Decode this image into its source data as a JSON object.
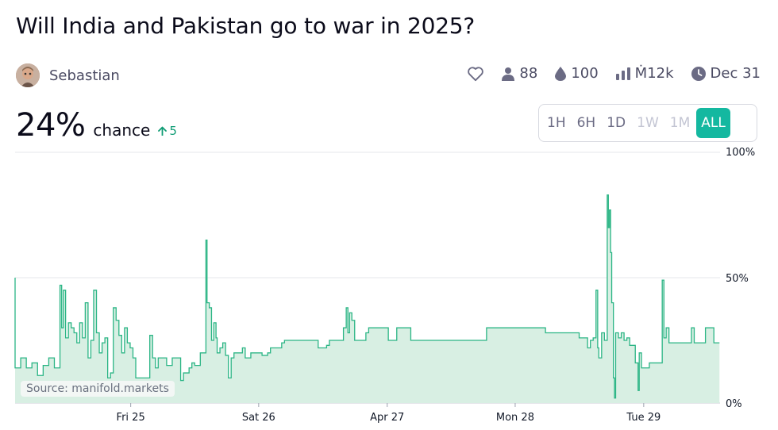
{
  "title": "Will India and Pakistan go to war in 2025?",
  "author": {
    "name": "Sebastian"
  },
  "stats": {
    "like_icon": "heart-icon",
    "traders": "88",
    "liquidity": "100",
    "volume": "Ṁ12k",
    "close_date": "Dec 31"
  },
  "probability": {
    "value": "24%",
    "label": "chance",
    "change": "5",
    "change_direction": "up"
  },
  "time_range": {
    "options": [
      {
        "label": "1H",
        "state": "enabled"
      },
      {
        "label": "6H",
        "state": "enabled"
      },
      {
        "label": "1D",
        "state": "enabled"
      },
      {
        "label": "1W",
        "state": "disabled"
      },
      {
        "label": "1M",
        "state": "disabled"
      },
      {
        "label": "ALL",
        "state": "active"
      }
    ]
  },
  "source_label": "Source: manifold.markets",
  "colors": {
    "line": "#2bb585",
    "fill": "#d8efe3",
    "accent": "#14b8a0",
    "grid": "#e5e7eb"
  },
  "chart_data": {
    "type": "area",
    "title": "",
    "xlabel": "",
    "ylabel": "",
    "x_unit": "hours since first plotted point",
    "x_range": [
      0,
      123
    ],
    "ylim": [
      0,
      100
    ],
    "y_ticks": [
      "0%",
      "50%",
      "100%"
    ],
    "y_tick_values": [
      0,
      50,
      100
    ],
    "x_ticks": [
      {
        "x": 20.6,
        "label": "Fri 25"
      },
      {
        "x": 43.4,
        "label": "Sat 26"
      },
      {
        "x": 66.3,
        "label": "Apr 27"
      },
      {
        "x": 89.1,
        "label": "Mon 28"
      },
      {
        "x": 112.0,
        "label": "Tue 29"
      }
    ],
    "grid": true,
    "series": [
      {
        "values": [
          [
            0,
            50
          ],
          [
            0,
            14
          ],
          [
            1,
            14
          ],
          [
            1,
            18
          ],
          [
            2,
            18
          ],
          [
            2,
            14
          ],
          [
            3,
            14
          ],
          [
            3,
            16
          ],
          [
            4,
            16
          ],
          [
            4,
            11
          ],
          [
            5,
            11
          ],
          [
            5,
            15
          ],
          [
            6,
            15
          ],
          [
            6,
            18
          ],
          [
            7,
            18
          ],
          [
            7,
            14
          ],
          [
            8,
            14
          ],
          [
            8,
            47
          ],
          [
            8.3,
            30
          ],
          [
            8.6,
            45
          ],
          [
            9,
            26
          ],
          [
            9.5,
            32
          ],
          [
            10,
            30
          ],
          [
            10.5,
            28
          ],
          [
            11,
            24
          ],
          [
            11.5,
            32
          ],
          [
            12,
            26
          ],
          [
            12.5,
            40
          ],
          [
            13,
            18
          ],
          [
            13.5,
            25
          ],
          [
            14,
            45
          ],
          [
            14.5,
            28
          ],
          [
            15,
            20
          ],
          [
            15.5,
            24
          ],
          [
            16,
            26
          ],
          [
            16.5,
            10
          ],
          [
            17,
            12
          ],
          [
            17.5,
            38
          ],
          [
            18,
            33
          ],
          [
            18.5,
            27
          ],
          [
            19,
            20
          ],
          [
            19.5,
            30
          ],
          [
            20,
            24
          ],
          [
            20.5,
            22
          ],
          [
            21,
            18
          ],
          [
            21.5,
            10
          ],
          [
            23,
            10
          ],
          [
            24,
            27
          ],
          [
            24.5,
            18
          ],
          [
            25,
            14
          ],
          [
            25.5,
            18
          ],
          [
            26,
            18
          ],
          [
            27,
            15
          ],
          [
            28,
            18
          ],
          [
            29,
            18
          ],
          [
            29.5,
            9
          ],
          [
            30,
            12
          ],
          [
            31,
            14
          ],
          [
            31.5,
            16
          ],
          [
            32,
            15
          ],
          [
            33,
            20
          ],
          [
            33.5,
            20
          ],
          [
            34,
            65
          ],
          [
            34.2,
            40
          ],
          [
            34.6,
            38
          ],
          [
            35,
            25
          ],
          [
            35.4,
            32
          ],
          [
            35.8,
            26
          ],
          [
            36,
            20
          ],
          [
            36.5,
            22
          ],
          [
            37,
            24
          ],
          [
            37.5,
            19
          ],
          [
            38,
            10
          ],
          [
            38.5,
            18
          ],
          [
            39,
            20
          ],
          [
            40,
            20
          ],
          [
            40.5,
            22
          ],
          [
            41,
            18
          ],
          [
            42,
            20
          ],
          [
            43,
            20
          ],
          [
            44,
            19
          ],
          [
            45,
            20
          ],
          [
            45.5,
            22
          ],
          [
            47,
            22
          ],
          [
            47.5,
            24
          ],
          [
            48,
            25
          ],
          [
            53,
            25
          ],
          [
            54,
            22
          ],
          [
            55,
            22
          ],
          [
            55.5,
            23
          ],
          [
            56,
            25
          ],
          [
            57,
            25
          ],
          [
            58,
            25
          ],
          [
            58.5,
            30
          ],
          [
            59,
            38
          ],
          [
            59.3,
            28
          ],
          [
            59.6,
            36
          ],
          [
            60,
            33
          ],
          [
            60.5,
            25
          ],
          [
            62,
            25
          ],
          [
            62.5,
            28
          ],
          [
            63,
            30
          ],
          [
            66,
            30
          ],
          [
            66.5,
            25
          ],
          [
            67,
            25
          ],
          [
            68,
            30
          ],
          [
            70,
            30
          ],
          [
            70.5,
            25
          ],
          [
            83,
            25
          ],
          [
            84,
            30
          ],
          [
            94,
            30
          ],
          [
            94.5,
            28
          ],
          [
            100,
            28
          ],
          [
            100.5,
            26
          ],
          [
            101.5,
            26
          ],
          [
            102,
            22
          ],
          [
            102.5,
            25
          ],
          [
            103,
            26
          ],
          [
            103.5,
            45
          ],
          [
            103.8,
            22
          ],
          [
            104,
            18
          ],
          [
            104.5,
            28
          ],
          [
            105,
            25
          ],
          [
            105.5,
            83
          ],
          [
            105.7,
            70
          ],
          [
            105.9,
            77
          ],
          [
            106.1,
            60
          ],
          [
            106.3,
            40
          ],
          [
            106.6,
            10
          ],
          [
            106.8,
            2
          ],
          [
            107,
            28
          ],
          [
            107.5,
            26
          ],
          [
            108,
            28
          ],
          [
            108.5,
            25
          ],
          [
            109,
            26
          ],
          [
            109.5,
            23
          ],
          [
            110,
            23
          ],
          [
            110.5,
            16
          ],
          [
            111,
            5
          ],
          [
            111.2,
            20
          ],
          [
            111.6,
            14
          ],
          [
            112,
            14
          ],
          [
            113,
            16
          ],
          [
            114,
            16
          ],
          [
            115,
            16
          ],
          [
            115.3,
            49
          ],
          [
            115.6,
            26
          ],
          [
            116,
            30
          ],
          [
            116.5,
            24
          ],
          [
            117,
            24
          ],
          [
            118,
            24
          ],
          [
            120,
            24
          ],
          [
            120.5,
            30
          ],
          [
            121,
            24
          ],
          [
            123,
            24
          ],
          [
            123,
            30
          ],
          [
            124.5,
            30
          ],
          [
            124.5,
            24
          ],
          [
            125.5,
            24
          ]
        ]
      }
    ]
  }
}
